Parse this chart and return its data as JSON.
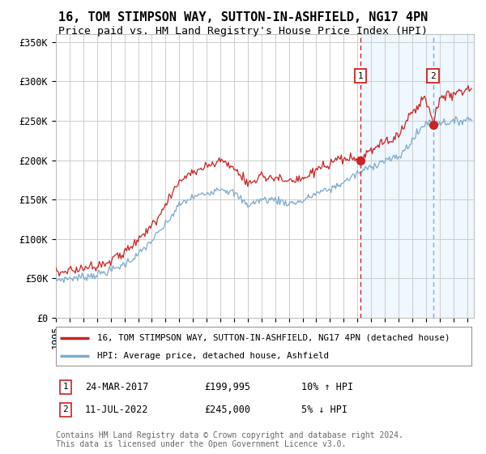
{
  "title": "16, TOM STIMPSON WAY, SUTTON-IN-ASHFIELD, NG17 4PN",
  "subtitle": "Price paid vs. HM Land Registry's House Price Index (HPI)",
  "ylim": [
    0,
    360000
  ],
  "yticks": [
    0,
    50000,
    100000,
    150000,
    200000,
    250000,
    300000,
    350000
  ],
  "ytick_labels": [
    "£0",
    "£50K",
    "£100K",
    "£150K",
    "£200K",
    "£250K",
    "£300K",
    "£350K"
  ],
  "xlim_start": 1995.0,
  "xlim_end": 2025.5,
  "marker1_x": 2017.23,
  "marker2_x": 2022.53,
  "marker1_y_sale": 199995,
  "marker2_y_sale": 245000,
  "annotation1_date": "24-MAR-2017",
  "annotation1_price": "£199,995",
  "annotation1_hpi": "10% ↑ HPI",
  "annotation2_date": "11-JUL-2022",
  "annotation2_price": "£245,000",
  "annotation2_hpi": "5% ↓ HPI",
  "legend_label1": "16, TOM STIMPSON WAY, SUTTON-IN-ASHFIELD, NG17 4PN (detached house)",
  "legend_label2": "HPI: Average price, detached house, Ashfield",
  "footer": "Contains HM Land Registry data © Crown copyright and database right 2024.\nThis data is licensed under the Open Government Licence v3.0.",
  "line1_color": "#cc2222",
  "line2_color": "#7aaacc",
  "shade_color": "#ddeeff",
  "background_color": "#ffffff",
  "grid_color": "#cccccc",
  "vline1_color": "#cc2222",
  "vline2_color": "#7aaacc",
  "title_fontsize": 11,
  "subtitle_fontsize": 9.5,
  "tick_fontsize": 8.5
}
